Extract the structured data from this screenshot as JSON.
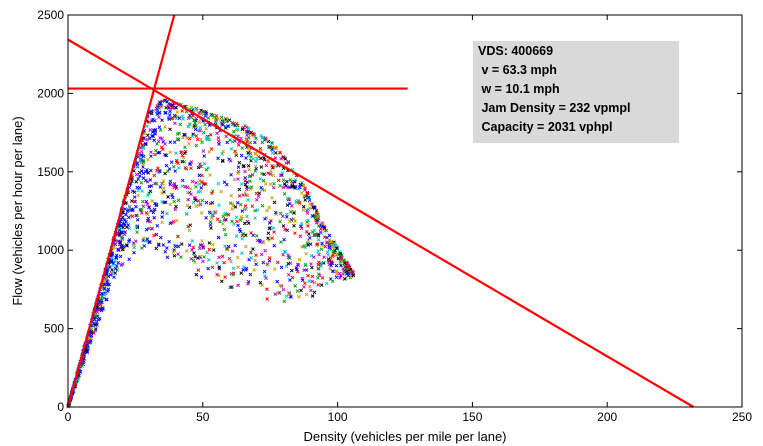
{
  "chart_data": {
    "type": "scatter",
    "title": "",
    "xlabel": "Density (vehicles per mile per lane)",
    "ylabel": "Flow (vehicles per hour per lane)",
    "xlim": [
      0,
      250
    ],
    "ylim": [
      0,
      2500
    ],
    "xticks": [
      "0",
      "50",
      "100",
      "150",
      "200",
      "250"
    ],
    "yticks": [
      "0",
      "500",
      "1000",
      "1500",
      "2000",
      "2500"
    ],
    "grid": false,
    "marker": "x",
    "point_colors": [
      "#0000ff",
      "#00a000",
      "#ff0000",
      "#00c8c8",
      "#c800c8",
      "#c8a000",
      "#000000"
    ],
    "fit_color": "#ff0000",
    "fundamental_diagram": {
      "free_flow_speed_mph": 63.3,
      "wave_speed_mph": 10.1,
      "jam_density_vpmpl": 232,
      "capacity_vphpl": 2031
    },
    "fit_lines": [
      {
        "type": "free-flow",
        "points": [
          [
            0,
            0
          ],
          [
            39.4,
            2500
          ]
        ]
      },
      {
        "type": "congested",
        "points": [
          [
            0,
            2343
          ],
          [
            232,
            0
          ]
        ]
      },
      {
        "type": "capacity",
        "points": [
          [
            0,
            2031
          ],
          [
            126,
            2031
          ]
        ]
      }
    ],
    "scatter_envelope": {
      "x_range": [
        0,
        106
      ],
      "upper_flow": [
        [
          0,
          0
        ],
        [
          10,
          633
        ],
        [
          20,
          1266
        ],
        [
          30,
          1880
        ],
        [
          35,
          1960
        ],
        [
          45,
          1920
        ],
        [
          55,
          1860
        ],
        [
          65,
          1800
        ],
        [
          75,
          1700
        ],
        [
          85,
          1500
        ],
        [
          95,
          1150
        ],
        [
          106,
          850
        ]
      ],
      "lower_flow": [
        [
          0,
          0
        ],
        [
          10,
          480
        ],
        [
          20,
          900
        ],
        [
          30,
          1050
        ],
        [
          40,
          900
        ],
        [
          50,
          820
        ],
        [
          60,
          760
        ],
        [
          70,
          700
        ],
        [
          80,
          660
        ],
        [
          90,
          700
        ],
        [
          100,
          800
        ],
        [
          106,
          830
        ]
      ]
    },
    "annotation": [
      "VDS: 400669",
      " v = 63.3 mph",
      " w = 10.1 mph",
      " Jam Density = 232 vpmpl",
      " Capacity = 2031 vphpl"
    ],
    "annotation_background": "#d9d9d9"
  }
}
